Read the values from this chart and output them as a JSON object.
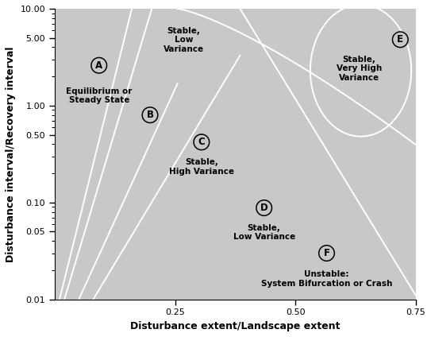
{
  "xlabel": "Disturbance extent/Landscape extent",
  "ylabel": "Disturbance interval/Recovery interval",
  "xlim": [
    0.0,
    0.75
  ],
  "ylim_log": [
    0.01,
    10.0
  ],
  "bg_color": "#c8c8c8",
  "curve_color": "white",
  "yticks": [
    0.01,
    0.05,
    0.1,
    0.5,
    1.0,
    5.0,
    10.0
  ],
  "ytick_labels": [
    "0.01",
    "0.05",
    "0.10",
    "0.50",
    "1.00",
    "5.00",
    "10.00"
  ],
  "xticks": [
    0.25,
    0.5,
    0.75
  ],
  "xtick_labels": [
    "0.25",
    "0.50",
    "0.75"
  ]
}
